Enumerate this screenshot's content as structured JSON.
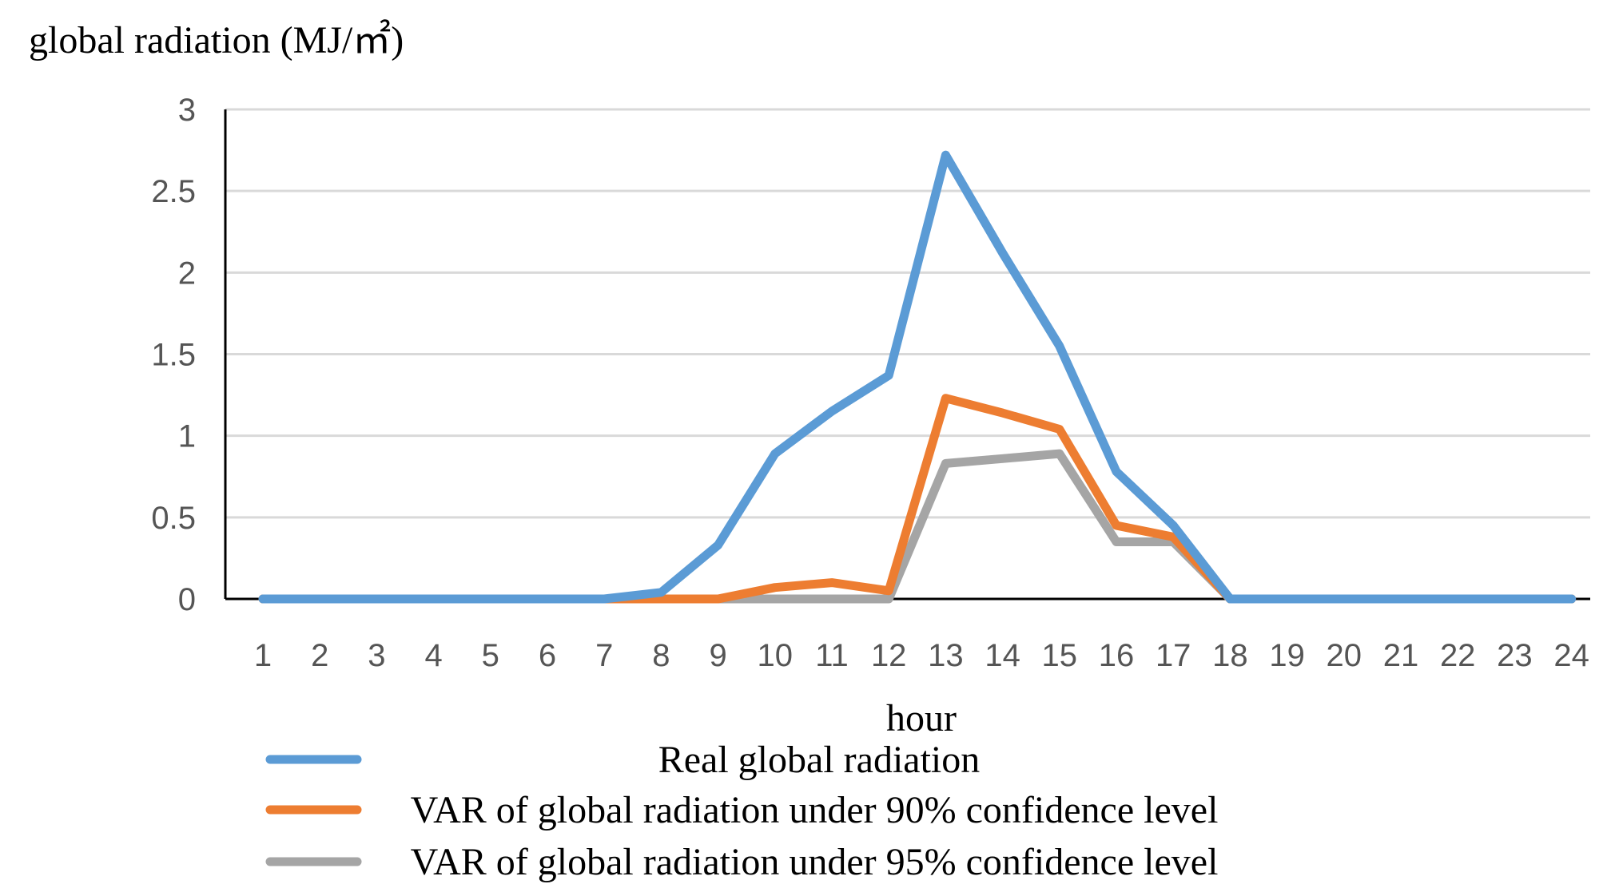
{
  "chart_data": {
    "type": "line",
    "ylabel": "global radiation (MJ/㎡)",
    "xlabel": "hour",
    "ylim": [
      0,
      3
    ],
    "yticks": [
      "0",
      "0.5",
      "1",
      "1.5",
      "2",
      "2.5",
      "3"
    ],
    "categories": [
      "1",
      "2",
      "3",
      "4",
      "5",
      "6",
      "7",
      "8",
      "9",
      "10",
      "11",
      "12",
      "13",
      "14",
      "15",
      "16",
      "17",
      "18",
      "19",
      "20",
      "21",
      "22",
      "23",
      "24"
    ],
    "grid": true,
    "legend_position": "bottom",
    "series": [
      {
        "name": "Real global radiation",
        "color": "#5b9bd5",
        "values": [
          0,
          0,
          0,
          0,
          0,
          0,
          0,
          0.04,
          0.33,
          0.89,
          1.15,
          1.37,
          2.72,
          2.12,
          1.55,
          0.78,
          0.45,
          0,
          0,
          0,
          0,
          0,
          0,
          0
        ]
      },
      {
        "name": "VAR of global radiation under 90% confidence level",
        "color": "#ed7d31",
        "values": [
          0,
          0,
          0,
          0,
          0,
          0,
          0,
          0,
          0,
          0.07,
          0.1,
          0.05,
          1.23,
          1.14,
          1.04,
          0.45,
          0.38,
          0,
          0,
          0,
          0,
          0,
          0,
          0
        ]
      },
      {
        "name": "VAR of global radiation under 95% confidence level",
        "color": "#a5a5a5",
        "values": [
          0,
          0,
          0,
          0,
          0,
          0,
          0,
          0,
          0,
          0,
          0,
          0,
          0.83,
          0.86,
          0.89,
          0.35,
          0.35,
          0,
          0,
          0,
          0,
          0,
          0,
          0
        ]
      }
    ]
  }
}
